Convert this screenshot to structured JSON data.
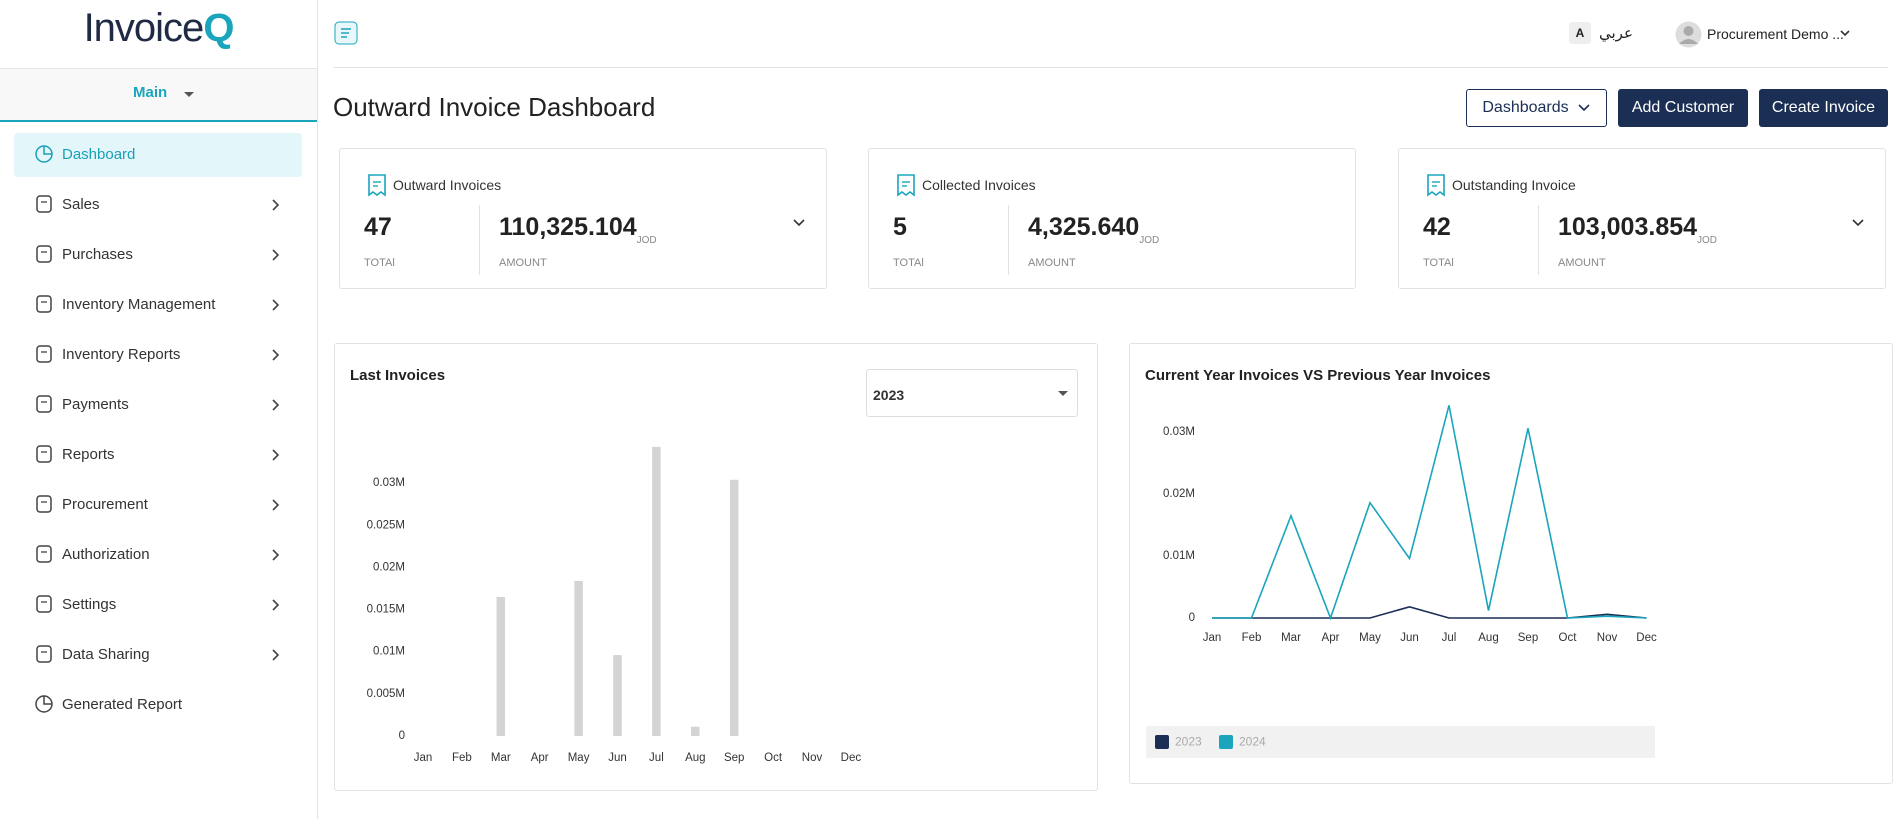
{
  "logo": {
    "text": "Invoice",
    "accent": "Q"
  },
  "sidebar": {
    "section": "Main",
    "menu": [
      {
        "label": "Dashboard",
        "active": true,
        "expandable": false
      },
      {
        "label": "Sales",
        "active": false,
        "expandable": true
      },
      {
        "label": "Purchases",
        "active": false,
        "expandable": true
      },
      {
        "label": "Inventory Management",
        "active": false,
        "expandable": true
      },
      {
        "label": "Inventory Reports",
        "active": false,
        "expandable": true
      },
      {
        "label": "Payments",
        "active": false,
        "expandable": true
      },
      {
        "label": "Reports",
        "active": false,
        "expandable": true
      },
      {
        "label": "Procurement",
        "active": false,
        "expandable": true
      },
      {
        "label": "Authorization",
        "active": false,
        "expandable": true
      },
      {
        "label": "Settings",
        "active": false,
        "expandable": true
      },
      {
        "label": "Data Sharing",
        "active": false,
        "expandable": true
      },
      {
        "label": "Generated Report",
        "active": false,
        "expandable": false
      }
    ]
  },
  "header": {
    "lang_badge": "A",
    "lang": "عربي",
    "user": "Procurement Demo ..."
  },
  "page": {
    "title": "Outward Invoice Dashboard",
    "buttons": [
      "Dashboards",
      "Add Customer",
      "Create Invoice"
    ]
  },
  "cards": [
    {
      "title": "Outward Invoices",
      "total": 47,
      "total_label": "TOTAl",
      "amount": "110,325.104",
      "currency": "JOD",
      "amount_label": "AMOUNT",
      "expandable": true
    },
    {
      "title": "Collected Invoices",
      "total": 5,
      "total_label": "TOTAl",
      "amount": "4,325.640",
      "currency": "JOD",
      "amount_label": "AMOUNT",
      "expandable": false
    },
    {
      "title": "Outstanding Invoice",
      "total": 42,
      "total_label": "TOTAl",
      "amount": "103,003.854",
      "currency": "JOD",
      "amount_label": "AMOUNT",
      "expandable": true
    }
  ],
  "chart_data": [
    {
      "type": "bar",
      "title": "Last Invoices",
      "year_select": "2023",
      "categories": [
        "Jan",
        "Feb",
        "Mar",
        "Apr",
        "May",
        "Jun",
        "Jul",
        "Aug",
        "Sep",
        "Oct",
        "Nov",
        "Dec"
      ],
      "values": [
        0,
        0,
        0.0165,
        0,
        0.0184,
        0.0096,
        0.0343,
        0.0011,
        0.0304,
        0,
        0,
        0
      ],
      "color": "#d4d4d4",
      "ylim": [
        0,
        0.035
      ],
      "yticks": [
        0,
        {
          "value": 0.005,
          "label": "0.005M"
        },
        {
          "value": 0.01,
          "label": "0.01M"
        },
        {
          "value": 0.015,
          "label": "0.015M"
        },
        {
          "value": 0.02,
          "label": "0.02M"
        },
        {
          "value": 0.025,
          "label": "0.025M"
        },
        {
          "value": 0.03,
          "label": "0.03M"
        }
      ],
      "grid": false
    },
    {
      "type": "line",
      "title": "Current Year Invoices VS Previous Year Invoices",
      "categories": [
        "Jan",
        "Feb",
        "Mar",
        "Apr",
        "May",
        "Jun",
        "Jul",
        "Aug",
        "Sep",
        "Oct",
        "Nov",
        "Dec"
      ],
      "series": [
        {
          "name": "2023",
          "color": "#1b2f55",
          "values": [
            0,
            0,
            0,
            0,
            0,
            0.0018,
            0,
            0,
            0,
            0,
            0.0006,
            0
          ]
        },
        {
          "name": "2024",
          "color": "#1aa5bd",
          "values": [
            0,
            0,
            0.0165,
            0,
            0.0186,
            0.0096,
            0.0343,
            0.0012,
            0.0306,
            0,
            0.0003,
            0
          ]
        }
      ],
      "ylim": [
        0,
        0.035
      ],
      "yticks": [
        0,
        {
          "value": 0.01,
          "label": "0.01M"
        },
        {
          "value": 0.02,
          "label": "0.02M"
        },
        {
          "value": 0.03,
          "label": "0.03M"
        }
      ],
      "grid": false,
      "legend": "bottom"
    }
  ]
}
